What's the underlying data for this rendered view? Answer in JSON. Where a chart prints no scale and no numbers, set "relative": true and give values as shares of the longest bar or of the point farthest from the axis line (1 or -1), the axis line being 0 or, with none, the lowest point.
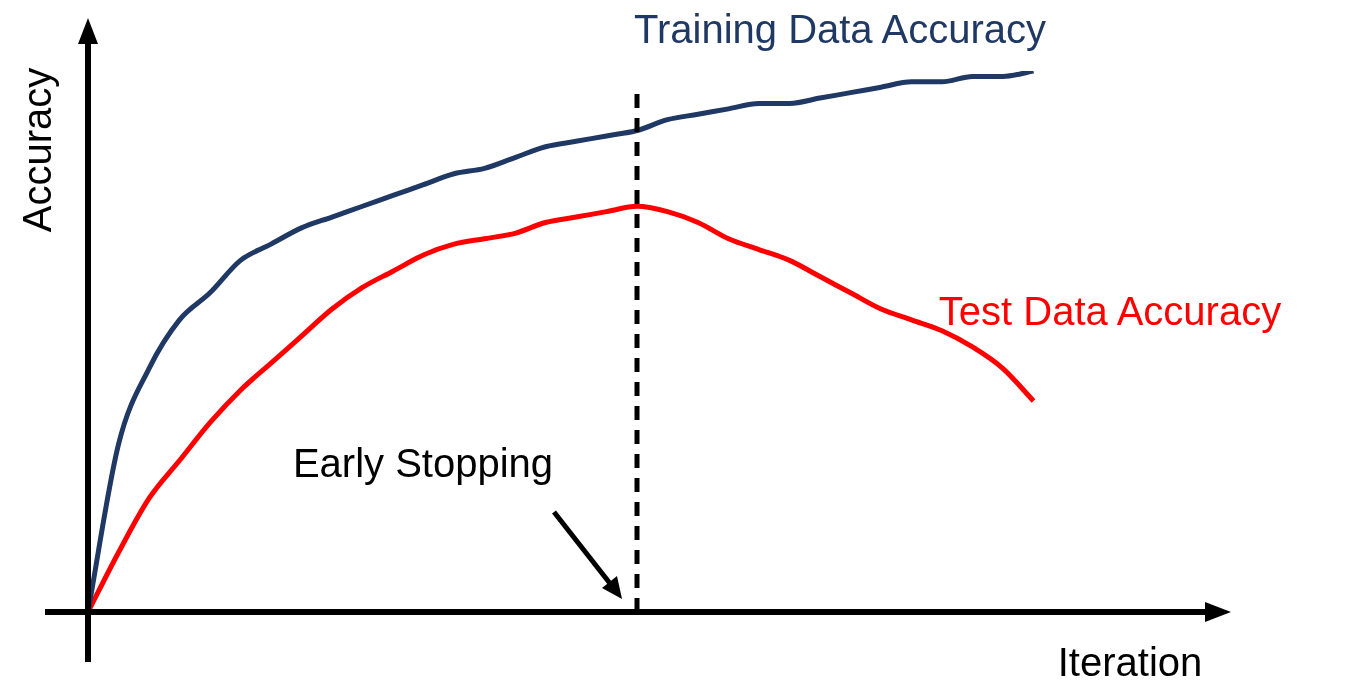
{
  "chart_data": {
    "type": "line",
    "relative": true,
    "xlabel": "Iteration",
    "ylabel": "Accuracy",
    "categories": [
      null,
      null,
      null,
      null,
      null,
      null,
      null,
      null,
      null,
      null,
      null,
      null,
      null,
      null,
      null,
      null,
      null,
      null,
      null,
      null,
      null,
      null,
      null,
      null,
      null,
      null,
      null,
      null,
      null,
      null,
      null,
      null
    ],
    "series": [
      {
        "name": "Training Data Accuracy",
        "color": "#1f3864",
        "values": [
          0,
          0.31,
          0.45,
          0.54,
          0.59,
          0.65,
          0.68,
          0.71,
          0.73,
          0.75,
          0.77,
          0.79,
          0.81,
          0.82,
          0.84,
          0.86,
          0.87,
          0.88,
          0.89,
          0.91,
          0.92,
          0.93,
          0.94,
          0.94,
          0.95,
          0.96,
          0.97,
          0.98,
          0.98,
          0.99,
          0.99,
          1
        ]
      },
      {
        "name": "Test Data Accuracy",
        "color": "#ff0000",
        "values": [
          0,
          0.11,
          0.21,
          0.28,
          0.35,
          0.41,
          0.46,
          0.51,
          0.56,
          0.6,
          0.63,
          0.66,
          0.68,
          0.69,
          0.7,
          0.72,
          0.73,
          0.74,
          0.75,
          0.74,
          0.72,
          0.69,
          0.67,
          0.65,
          0.62,
          0.59,
          0.56,
          0.54,
          0.52,
          0.49,
          0.45,
          0.39
        ]
      }
    ],
    "annotations": [
      "Early Stopping"
    ],
    "legend": false,
    "marker": "none",
    "line_style": "solid"
  }
}
